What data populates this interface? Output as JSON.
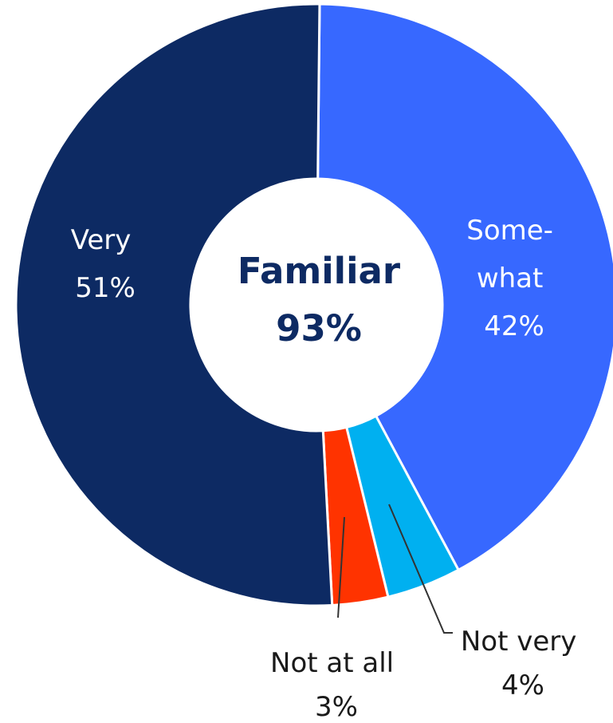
{
  "chart_data": {
    "type": "pie",
    "variant": "donut",
    "center_label": {
      "title": "Familiar",
      "value": "93%"
    },
    "slices": [
      {
        "name": "Some-what",
        "label_lines": [
          "Some-",
          "what"
        ],
        "value": 42,
        "value_label": "42%",
        "color": "#3768ff",
        "label_color": "#ffffff"
      },
      {
        "name": "Not very",
        "label_lines": [
          "Not very"
        ],
        "value": 4,
        "value_label": "4%",
        "color": "#00b0f0",
        "label_color": "#1a1a1a"
      },
      {
        "name": "Not at all",
        "label_lines": [
          "Not at all"
        ],
        "value": 3,
        "value_label": "3%",
        "color": "#ff3300",
        "label_color": "#1a1a1a"
      },
      {
        "name": "Very",
        "label_lines": [
          "Very"
        ],
        "value": 51,
        "value_label": "51%",
        "color": "#0d2a63",
        "label_color": "#ffffff"
      }
    ]
  }
}
